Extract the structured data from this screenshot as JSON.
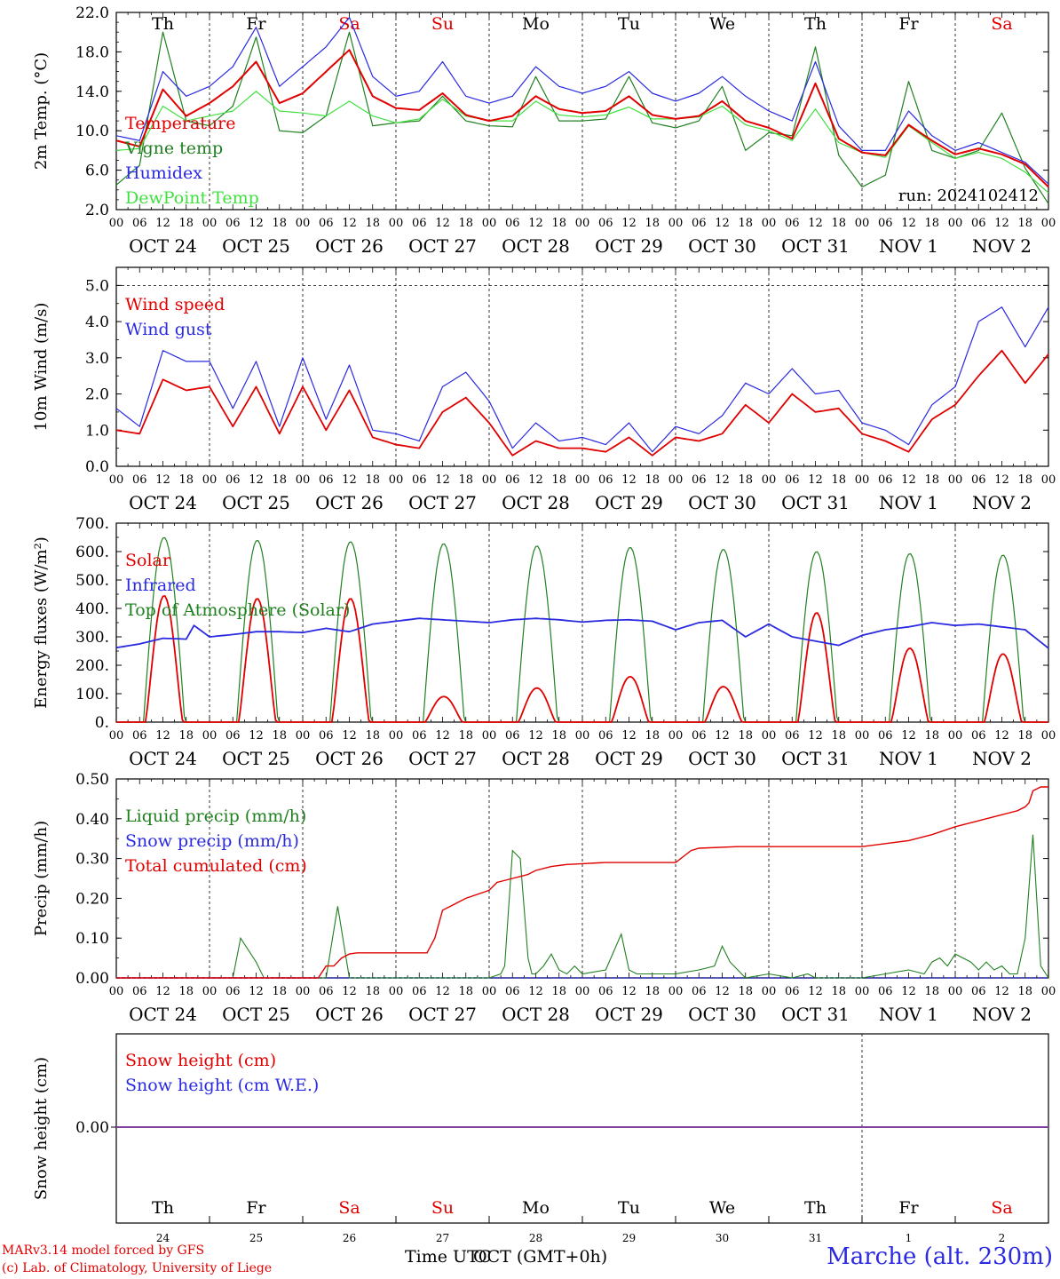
{
  "chart_data": [
    {
      "type": "line",
      "ylabel": "2m Temp. (°C)",
      "ylim": [
        2,
        22
      ],
      "ytick_labels": [
        "2.0",
        "6.0",
        "10.0",
        "14.0",
        "18.0",
        "22.0"
      ],
      "day_labels": [
        "Th",
        "Fr",
        "Sa",
        "Su",
        "Mo",
        "Tu",
        "We",
        "Th",
        "Fr",
        "Sa"
      ],
      "weekend_days": [
        "Sa",
        "Su"
      ],
      "hour_labels": [
        "00",
        "06",
        "12",
        "18"
      ],
      "date_labels": [
        "OCT 24",
        "OCT 25",
        "OCT 26",
        "OCT 27",
        "OCT 28",
        "OCT 29",
        "OCT 30",
        "OCT 31",
        "NOV  1",
        "NOV  2"
      ],
      "x_hours": [
        0,
        6,
        12,
        18,
        24,
        30,
        36,
        42,
        48,
        54,
        60,
        66,
        72,
        78,
        84,
        90,
        96,
        102,
        108,
        114,
        120,
        126,
        132,
        138,
        144,
        150,
        156,
        162,
        168,
        174,
        180,
        186,
        192,
        198,
        204,
        210,
        216,
        222,
        228,
        234,
        240
      ],
      "annotation": "run: 2024102412",
      "grid": "dashed day separators",
      "legend": "top-left",
      "series": [
        {
          "name": "Temperature",
          "color": "#e00000",
          "values": [
            9.0,
            8.4,
            14.2,
            11.5,
            12.8,
            14.5,
            17.0,
            12.8,
            13.8,
            16.0,
            18.2,
            13.5,
            12.3,
            12.1,
            13.8,
            11.6,
            11.0,
            11.5,
            13.5,
            12.2,
            11.8,
            12.0,
            13.5,
            11.6,
            11.2,
            11.5,
            13.0,
            11.0,
            10.3,
            9.2,
            14.8,
            9.2,
            7.8,
            7.5,
            10.6,
            9.0,
            7.6,
            8.2,
            7.6,
            6.6,
            4.3
          ]
        },
        {
          "name": "Vigne temp",
          "color": "#208020",
          "values": [
            4.5,
            6.5,
            20.0,
            11.0,
            10.5,
            12.5,
            19.5,
            10.0,
            9.8,
            11.5,
            20.0,
            10.5,
            10.8,
            11.0,
            13.5,
            11.0,
            10.5,
            10.4,
            15.5,
            11.0,
            11.0,
            11.2,
            15.5,
            10.8,
            10.3,
            11.0,
            14.5,
            8.0,
            9.8,
            9.5,
            18.5,
            7.5,
            4.3,
            5.5,
            15.0,
            8.0,
            7.2,
            8.0,
            11.8,
            6.2,
            2.6
          ]
        },
        {
          "name": "Humidex",
          "color": "#2a2ae0",
          "values": [
            9.5,
            9.0,
            16.0,
            13.5,
            14.5,
            16.5,
            20.5,
            14.5,
            16.5,
            18.5,
            21.5,
            15.5,
            13.5,
            14.0,
            17.0,
            13.5,
            12.8,
            13.5,
            16.5,
            14.5,
            13.8,
            14.5,
            16.0,
            13.8,
            13.0,
            13.8,
            15.5,
            13.5,
            12.0,
            11.0,
            17.0,
            10.5,
            8.0,
            8.0,
            12.0,
            9.5,
            8.0,
            8.8,
            7.8,
            6.8,
            4.6
          ]
        },
        {
          "name": "DewPoint Temp",
          "color": "#40e040",
          "values": [
            8.0,
            8.2,
            12.5,
            11.0,
            11.5,
            12.0,
            14.0,
            12.0,
            11.8,
            11.5,
            13.0,
            11.5,
            10.8,
            11.2,
            13.2,
            11.5,
            11.0,
            11.0,
            13.0,
            11.6,
            11.4,
            11.6,
            12.4,
            11.2,
            11.2,
            11.4,
            12.5,
            10.6,
            10.0,
            9.0,
            12.2,
            8.8,
            7.8,
            7.3,
            10.5,
            8.8,
            7.2,
            7.8,
            7.2,
            5.8,
            3.7
          ]
        }
      ]
    },
    {
      "type": "line",
      "ylabel": "10m Wind (m/s)",
      "ylim": [
        0,
        5.5
      ],
      "ytick_labels": [
        "0.0",
        "1.0",
        "2.0",
        "3.0",
        "4.0",
        "5.0"
      ],
      "hour_labels": [
        "00",
        "06",
        "12",
        "18"
      ],
      "date_labels": [
        "OCT 24",
        "OCT 25",
        "OCT 26",
        "OCT 27",
        "OCT 28",
        "OCT 29",
        "OCT 30",
        "OCT 31",
        "NOV  1",
        "NOV  2"
      ],
      "x_hours": [
        0,
        6,
        12,
        18,
        24,
        30,
        36,
        42,
        48,
        54,
        60,
        66,
        72,
        78,
        84,
        90,
        96,
        102,
        108,
        114,
        120,
        126,
        132,
        138,
        144,
        150,
        156,
        162,
        168,
        174,
        180,
        186,
        192,
        198,
        204,
        210,
        216,
        222,
        228,
        234,
        240
      ],
      "reference_line": 5.0,
      "legend": "top-left",
      "series": [
        {
          "name": "Wind speed",
          "color": "#e00000",
          "values": [
            1.0,
            0.9,
            2.4,
            2.1,
            2.2,
            1.1,
            2.2,
            0.9,
            2.2,
            1.0,
            2.1,
            0.8,
            0.6,
            0.5,
            1.5,
            1.9,
            1.2,
            0.3,
            0.7,
            0.5,
            0.5,
            0.4,
            0.8,
            0.3,
            0.8,
            0.7,
            0.9,
            1.7,
            1.2,
            2.0,
            1.5,
            1.6,
            0.9,
            0.7,
            0.4,
            1.3,
            1.7,
            2.5,
            3.2,
            2.3,
            3.1
          ]
        },
        {
          "name": "Wind gust",
          "color": "#2a2ae0",
          "values": [
            1.6,
            1.1,
            3.2,
            2.9,
            2.9,
            1.6,
            2.9,
            1.1,
            3.0,
            1.3,
            2.8,
            1.0,
            0.9,
            0.7,
            2.2,
            2.6,
            1.8,
            0.5,
            1.2,
            0.7,
            0.8,
            0.6,
            1.2,
            0.4,
            1.1,
            0.9,
            1.4,
            2.3,
            2.0,
            2.7,
            2.0,
            2.1,
            1.2,
            1.0,
            0.6,
            1.7,
            2.2,
            4.0,
            4.4,
            3.3,
            4.4
          ]
        }
      ]
    },
    {
      "type": "line",
      "ylabel": "Energy fluxes (W/m²)",
      "ylim": [
        0,
        700
      ],
      "ytick_labels": [
        "0.",
        "100.",
        "200.",
        "300.",
        "400.",
        "500.",
        "600.",
        "700."
      ],
      "hour_labels": [
        "00",
        "06",
        "12",
        "18"
      ],
      "date_labels": [
        "OCT 24",
        "OCT 25",
        "OCT 26",
        "OCT 27",
        "OCT 28",
        "OCT 29",
        "OCT 30",
        "OCT 31",
        "NOV  1",
        "NOV  2"
      ],
      "day_peaks": {
        "toa_peak_hour": [
          12.3,
          36.3,
          60.3,
          84.3,
          108.3,
          132.3,
          156.3,
          180.3,
          204.3,
          228.3
        ],
        "toa_peak": [
          650,
          640,
          635,
          628,
          620,
          615,
          608,
          600,
          593,
          588
        ],
        "solar_peak": [
          445,
          435,
          435,
          90,
          120,
          160,
          125,
          385,
          260,
          240
        ]
      },
      "x_hours_infrared": [
        0,
        6,
        12,
        18,
        20,
        24,
        30,
        36,
        42,
        48,
        54,
        60,
        66,
        72,
        78,
        84,
        90,
        96,
        102,
        108,
        114,
        120,
        126,
        132,
        138,
        144,
        150,
        156,
        162,
        168,
        174,
        180,
        186,
        192,
        198,
        204,
        210,
        216,
        222,
        228,
        234,
        240
      ],
      "legend": "top-left",
      "series": [
        {
          "name": "Solar",
          "color": "#e00000"
        },
        {
          "name": "Infrared",
          "color": "#2a2ae0",
          "values": [
            262,
            275,
            295,
            292,
            340,
            300,
            308,
            318,
            318,
            315,
            330,
            318,
            345,
            355,
            365,
            360,
            355,
            350,
            360,
            365,
            360,
            352,
            358,
            360,
            355,
            325,
            350,
            358,
            300,
            345,
            300,
            285,
            270,
            305,
            325,
            335,
            350,
            340,
            345,
            335,
            325,
            260
          ]
        },
        {
          "name": "Top of Atmosphere (Solar)",
          "color": "#208020"
        }
      ]
    },
    {
      "type": "line",
      "ylabel": "Precip (mm/h)",
      "ylim": [
        0,
        0.5
      ],
      "ytick_labels": [
        "0.00",
        "0.10",
        "0.20",
        "0.30",
        "0.40",
        "0.50"
      ],
      "hour_labels": [
        "00",
        "06",
        "12",
        "18"
      ],
      "date_labels": [
        "OCT 24",
        "OCT 25",
        "OCT 26",
        "OCT 27",
        "OCT 28",
        "OCT 29",
        "OCT 30",
        "OCT 31",
        "NOV  1",
        "NOV  2"
      ],
      "legend": "top-left",
      "series": [
        {
          "name": "Liquid precip (mm/h)",
          "color": "#208020",
          "x": [
            0,
            6,
            7,
            8,
            9,
            10,
            12,
            14,
            16,
            18,
            20,
            23,
            24,
            30,
            32,
            36,
            38,
            40,
            42,
            44,
            46,
            48,
            54,
            57,
            59,
            60,
            62,
            66,
            72,
            78,
            80,
            84,
            86,
            88,
            90,
            92,
            96,
            99,
            100,
            102,
            104,
            106,
            107,
            108,
            110,
            112,
            114,
            116,
            118,
            120,
            126,
            130,
            132,
            134,
            136,
            138,
            144,
            150,
            154,
            156,
            158,
            160,
            162,
            168,
            174,
            178,
            180,
            184,
            192,
            198,
            204,
            208,
            210,
            212,
            214,
            216,
            220,
            222,
            224,
            226,
            228,
            230,
            232,
            234,
            236,
            238,
            240
          ],
          "values": [
            0,
            0,
            0,
            0,
            0,
            0,
            0,
            0,
            0,
            0,
            0,
            0,
            0,
            0,
            0.1,
            0.04,
            0,
            0,
            0,
            0,
            0,
            0,
            0,
            0.18,
            0.06,
            0,
            0,
            0,
            0,
            0,
            0,
            0,
            0,
            0,
            0,
            0,
            0,
            0.01,
            0.03,
            0.32,
            0.3,
            0.05,
            0.01,
            0.01,
            0.03,
            0.06,
            0.02,
            0.01,
            0.03,
            0.01,
            0.02,
            0.11,
            0.02,
            0.01,
            0.01,
            0.01,
            0.01,
            0.02,
            0.03,
            0.08,
            0.04,
            0.02,
            0,
            0.01,
            0,
            0.01,
            0,
            0,
            0,
            0.01,
            0.02,
            0.01,
            0.04,
            0.05,
            0.03,
            0.06,
            0.04,
            0.02,
            0.04,
            0.02,
            0.03,
            0.01,
            0.01,
            0.1,
            0.36,
            0.03,
            0
          ]
        },
        {
          "name": "Snow precip (mm/h)",
          "color": "#2a2ae0",
          "values": [
            0
          ]
        },
        {
          "name": "Total cumulated (cm)",
          "color": "#e00000",
          "x": [
            0,
            9,
            12,
            16,
            30,
            52,
            54,
            56,
            58,
            60,
            62,
            78,
            80,
            82,
            84,
            86,
            88,
            90,
            96,
            98,
            102,
            104,
            106,
            108,
            112,
            116,
            120,
            124,
            126,
            132,
            144,
            148,
            150,
            160,
            168,
            180,
            192,
            200,
            204,
            210,
            216,
            220,
            228,
            232,
            234,
            235,
            236,
            238,
            240
          ],
          "values": [
            0,
            0,
            0,
            0,
            0,
            0,
            0.03,
            0.03,
            0.05,
            0.06,
            0.063,
            0.063,
            0.063,
            0.1,
            0.17,
            0.18,
            0.19,
            0.2,
            0.22,
            0.24,
            0.25,
            0.255,
            0.26,
            0.27,
            0.28,
            0.285,
            0.287,
            0.289,
            0.29,
            0.29,
            0.29,
            0.32,
            0.326,
            0.33,
            0.33,
            0.33,
            0.33,
            0.34,
            0.345,
            0.36,
            0.38,
            0.39,
            0.41,
            0.42,
            0.43,
            0.44,
            0.47,
            0.48,
            0.48
          ]
        }
      ]
    },
    {
      "type": "line",
      "ylabel": "Snow height (cm)",
      "ytick_labels": [
        "0.00"
      ],
      "day_labels": [
        "Th",
        "Fr",
        "Sa",
        "Su",
        "Mo",
        "Tu",
        "We",
        "Th",
        "Fr",
        "Sa"
      ],
      "day_numbers": [
        "24",
        "25",
        "26",
        "27",
        "28",
        "29",
        "30",
        "31",
        "1",
        "2"
      ],
      "legend": "top-left",
      "series": [
        {
          "name": "Snow height (cm)",
          "color": "#e00000",
          "values": [
            0,
            0
          ]
        },
        {
          "name": "Snow height (cm W.E.)",
          "color": "#2a2ae0",
          "values": [
            0,
            0
          ]
        }
      ]
    }
  ],
  "footer": {
    "model_line": "MARv3.14 model forced by GFS",
    "copyright_line": "(c) Lab. of Climatology, University of Liege",
    "xlabel_a": "Time UTC",
    "xlabel_b": "OCT (GMT+0h)",
    "station": "Marche (alt. 230m)"
  }
}
